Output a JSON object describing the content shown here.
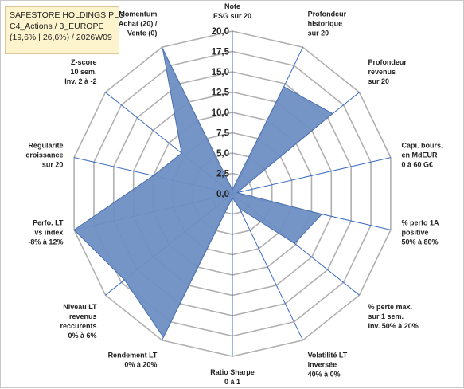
{
  "title": {
    "line1": "SAFESTORE HOLDINGS PLC",
    "line2": "C4_Actions / 3_EUROPE",
    "line3": "(19,6% | 26,6%) / 2026W09"
  },
  "chart_data": {
    "type": "radar",
    "rmin": 0,
    "rmax": 20,
    "ticks": [
      "0,0",
      "2,5",
      "5,0",
      "7,5",
      "10,0",
      "12,5",
      "15,0",
      "17,5",
      "20,0"
    ],
    "grid": true,
    "axes": [
      {
        "label": [
          "Note",
          "ESG sur 20"
        ],
        "value": 0.5
      },
      {
        "label": [
          "Profondeur",
          "historique",
          "sur 20"
        ],
        "value": 14.6
      },
      {
        "label": [
          "Profondeur",
          "revenus",
          "sur 20"
        ],
        "value": 15.8
      },
      {
        "label": [
          "Capi. bours.",
          "en MdEUR",
          "0 à 60 G€"
        ],
        "value": 0.6
      },
      {
        "label": [
          "% perfo 1A",
          "positive",
          "50% à 80%"
        ],
        "value": 11.3
      },
      {
        "label": [
          "% perte max.",
          "sur 1 sem.",
          "Inv. 50% à 20%"
        ],
        "value": 9.8
      },
      {
        "label": [
          "Volatilité LT",
          "inversée",
          "40% à 0%"
        ],
        "value": 2.0
      },
      {
        "label": [
          "Ratio Sharpe",
          "0 à 1"
        ],
        "value": 0.5
      },
      {
        "label": [
          "Rendement LT",
          "0% à 20%"
        ],
        "value": 19.6
      },
      {
        "label": [
          "Niveau LT",
          "revenus",
          "reccurents",
          "0% à 6%"
        ],
        "value": 17.0
      },
      {
        "label": [
          "Perfo. LT",
          "vs index",
          "-8% à 12%"
        ],
        "value": 20.0
      },
      {
        "label": [
          "Régularité",
          "croissance",
          "sur 20"
        ],
        "value": 10.0
      },
      {
        "label": [
          "Z-score",
          "10 sem.",
          "Inv. 2 à -2"
        ],
        "value": 8.0
      },
      {
        "label": [
          "Momentum",
          "Achat (20) /",
          "Vente (0)"
        ],
        "value": 19.8
      }
    ],
    "colors": {
      "fill": "#6f8fc4",
      "stroke": "#4a6fae",
      "axis": "#3a6cc6",
      "grid": "#b0b0b0"
    }
  }
}
